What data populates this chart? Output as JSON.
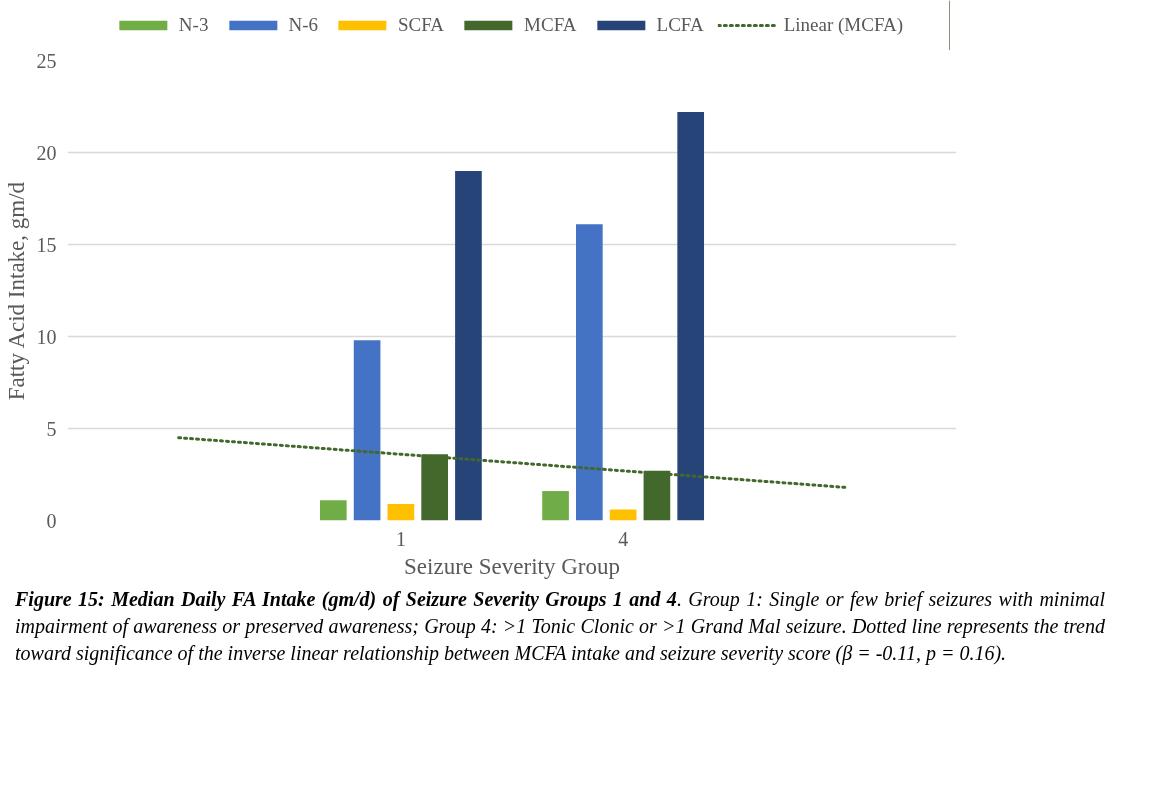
{
  "chart_data": {
    "type": "bar",
    "xlabel": "Seizure Severity Group",
    "ylabel": "Fatty Acid Intake, gm/d",
    "categories": [
      null,
      "1",
      "4",
      null
    ],
    "series": [
      {
        "name": "N-3",
        "color": "#70ad47",
        "values": [
          null,
          1.1,
          1.6,
          null
        ]
      },
      {
        "name": "N-6",
        "color": "#4472c4",
        "values": [
          null,
          9.8,
          16.1,
          null
        ]
      },
      {
        "name": "SCFA",
        "color": "#ffc000",
        "values": [
          null,
          0.9,
          0.6,
          null
        ]
      },
      {
        "name": "MCFA",
        "color": "#43682b",
        "values": [
          null,
          3.6,
          2.7,
          null
        ]
      },
      {
        "name": "LCFA",
        "color": "#264478",
        "values": [
          null,
          19.0,
          22.2,
          null
        ]
      },
      {
        "name": "Linear (MCFA)",
        "type": "line",
        "line_style": "dotted",
        "color": "#43682b",
        "values": [
          4.5,
          3.6,
          2.7,
          1.8
        ]
      }
    ],
    "ylim": [
      0,
      25
    ],
    "yticks": [
      0,
      5,
      10,
      15,
      20,
      25
    ],
    "grid": "y",
    "legend": "top",
    "annotations": [
      "Figure 15: Median Daily FA Intake (gm/d) of Seizure Severity Groups 1 and 4",
      ". Group 1: Single or few brief seizures with minimal impairment of awareness or preserved awareness; Group 4: >1 Tonic Clonic or >1 Grand Mal seizure. Dotted line represents the trend toward significance of the inverse linear relationship between MCFA intake and seizure severity score (β = -0.11, p = 0.16)."
    ]
  }
}
